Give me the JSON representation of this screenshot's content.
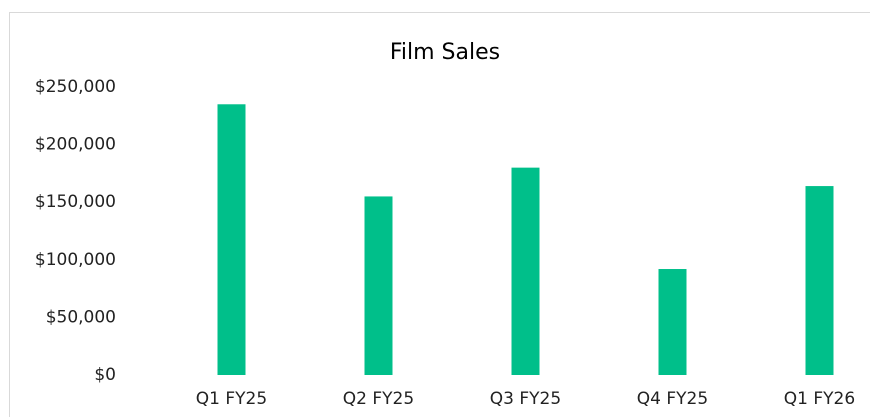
{
  "chart_data": {
    "type": "bar",
    "title": "Film Sales",
    "categories": [
      "Q1 FY25",
      "Q2 FY25",
      "Q3 FY25",
      "Q4 FY25",
      "Q1 FY26"
    ],
    "values": [
      235000,
      155000,
      180000,
      92000,
      164000
    ],
    "color": "#00bf8a",
    "ylim": [
      0,
      250000
    ],
    "yticks": [
      {
        "value": 0,
        "label": "$0"
      },
      {
        "value": 50000,
        "label": "$50,000"
      },
      {
        "value": 100000,
        "label": "$100,000"
      },
      {
        "value": 150000,
        "label": "$150,000"
      },
      {
        "value": 200000,
        "label": "$200,000"
      },
      {
        "value": 250000,
        "label": "$250,000"
      }
    ],
    "grid": false
  }
}
